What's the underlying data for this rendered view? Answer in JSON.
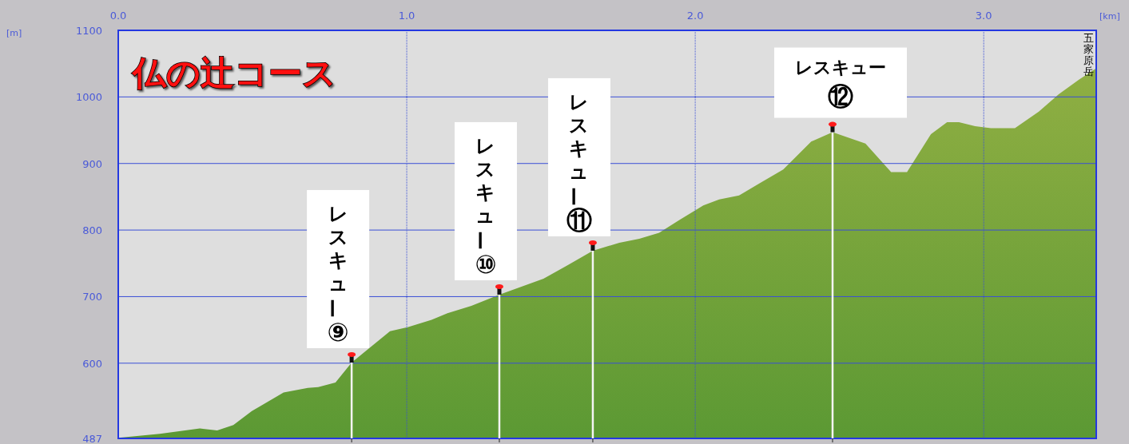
{
  "chart_data": {
    "type": "area",
    "title": "仏の辻コース",
    "xlabel": "[km]",
    "x": [
      0,
      0.144,
      0.283,
      0.343,
      0.399,
      0.463,
      0.573,
      0.657,
      0.693,
      0.753,
      0.809,
      0.942,
      1.003,
      1.086,
      1.141,
      1.224,
      1.321,
      1.474,
      1.557,
      1.645,
      1.737,
      1.806,
      1.875,
      1.945,
      2.028,
      2.083,
      2.152,
      2.222,
      2.305,
      2.402,
      2.476,
      2.59,
      2.679,
      2.734,
      2.817,
      2.873,
      2.914,
      2.97,
      3.025,
      3.108,
      3.191,
      3.26,
      3.33,
      3.39
    ],
    "series": [
      {
        "color": "#6a9e3a",
        "values": [
          488,
          494,
          502,
          499,
          507,
          528,
          556,
          563,
          564,
          571,
          601,
          648,
          654,
          665,
          675,
          686,
          703,
          727,
          747,
          769,
          781,
          787,
          796,
          815,
          837,
          846,
          852,
          870,
          891,
          933,
          947,
          930,
          887,
          887,
          944,
          962,
          962,
          956,
          953,
          953,
          978,
          1004,
          1026,
          1043
        ]
      }
    ],
    "xlim": [
      0,
      3.39
    ],
    "ylim": [
      487,
      1100
    ],
    "xticks": [
      {
        "value": 0,
        "label": "0.0"
      },
      {
        "value": 1,
        "label": "1.0"
      },
      {
        "value": 2,
        "label": "2.0"
      },
      {
        "value": 3,
        "label": "3.0"
      }
    ],
    "yticks": [
      487,
      600,
      700,
      800,
      900,
      1000,
      1100
    ],
    "grid": true,
    "annotations": [
      "[m]",
      {
        "text": "レスキュー⑨",
        "x": 0.809,
        "y": 601
      },
      {
        "text": "レスキュー⑩",
        "x": 1.321,
        "y": 703
      },
      {
        "text": "レスキュー⑪",
        "x": 1.645,
        "y": 769
      },
      {
        "text": "レスキュー⑫",
        "x": 2.476,
        "y": 947
      },
      {
        "text": "五家原岳",
        "x": 3.39,
        "y": 1043
      }
    ]
  }
}
